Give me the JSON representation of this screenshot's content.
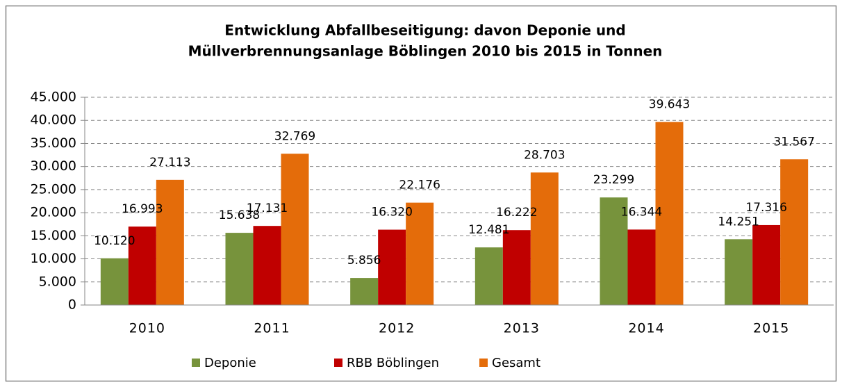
{
  "chart_data": {
    "type": "bar",
    "title": [
      "Entwicklung Abfallbeseitigung: davon Deponie und",
      "Müllverbrennungsanlage Böblingen 2010 bis 2015 in Tonnen"
    ],
    "categories": [
      "2010",
      "2011",
      "2012",
      "2013",
      "2014",
      "2015"
    ],
    "series": [
      {
        "name": "Deponie",
        "color": "#77933c",
        "values": [
          10120,
          15638,
          5856,
          12481,
          23299,
          14251
        ],
        "value_labels": [
          "10.120",
          "15.638",
          "5.856",
          "12.481",
          "23.299",
          "14.251"
        ]
      },
      {
        "name": "RBB Böblingen",
        "color": "#c00000",
        "values": [
          16993,
          17131,
          16320,
          16222,
          16344,
          17316
        ],
        "value_labels": [
          "16.993",
          "17.131",
          "16.320",
          "16.222",
          "16.344",
          "17.316"
        ]
      },
      {
        "name": "Gesamt",
        "color": "#e46c0a",
        "values": [
          27113,
          32769,
          22176,
          28703,
          39643,
          31567
        ],
        "value_labels": [
          "27.113",
          "32.769",
          "22.176",
          "28.703",
          "39.643",
          "31.567"
        ]
      }
    ],
    "ylim": [
      0,
      45000
    ],
    "yticks": [
      0,
      {
        "value": 5000,
        "label": "5.000"
      },
      {
        "value": 10000,
        "label": "10.000"
      },
      {
        "value": 15000,
        "label": "15.000"
      },
      {
        "value": 20000,
        "label": "20.000"
      },
      {
        "value": 25000,
        "label": "25.000"
      },
      {
        "value": 30000,
        "label": "30.000"
      },
      {
        "value": 35000,
        "label": "35.000"
      },
      {
        "value": 40000,
        "label": "40.000"
      },
      {
        "value": 45000,
        "label": "45.000"
      }
    ],
    "grid": true,
    "legend": "bottom"
  }
}
